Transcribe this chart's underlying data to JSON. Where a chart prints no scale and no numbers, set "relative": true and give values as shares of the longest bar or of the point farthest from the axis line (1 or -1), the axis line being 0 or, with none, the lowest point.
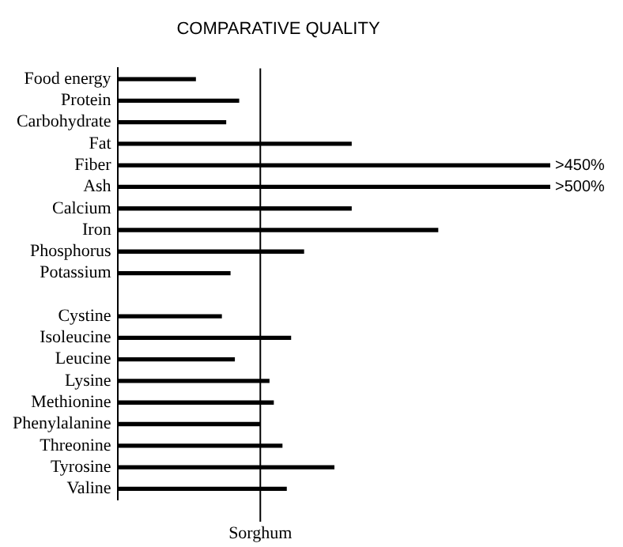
{
  "chart_data": {
    "type": "bar",
    "orientation": "horizontal",
    "relative": true,
    "title": "COMPARATIVE QUALITY",
    "categories": [
      "Food energy",
      "Protein",
      "Carbohydrate",
      "Fat",
      "Fiber",
      "Ash",
      "Calcium",
      "Iron",
      "Phosphorus",
      "Potassium",
      null,
      "Cystine",
      "Isoleucine",
      "Leucine",
      "Lysine",
      "Methionine",
      "Phenylalanine",
      "Threonine",
      "Tyrosine",
      "Valine"
    ],
    "values": [
      0.18,
      0.28,
      0.25,
      0.54,
      1,
      1,
      0.54,
      0.74,
      0.43,
      0.26,
      null,
      0.24,
      0.4,
      0.27,
      0.35,
      0.36,
      0.33,
      0.38,
      0.5,
      0.39
    ],
    "color": "#000000",
    "ref_lines": [
      {
        "axis": "x",
        "value": 0.33,
        "label": "Sorghum",
        "color": "#000000"
      }
    ],
    "annotations": [
      {
        "text": ">450%",
        "x": 1,
        "y": "Fiber"
      },
      {
        "text": ">500%",
        "x": 1,
        "y": "Ash"
      }
    ],
    "grid": false,
    "legend": false
  }
}
